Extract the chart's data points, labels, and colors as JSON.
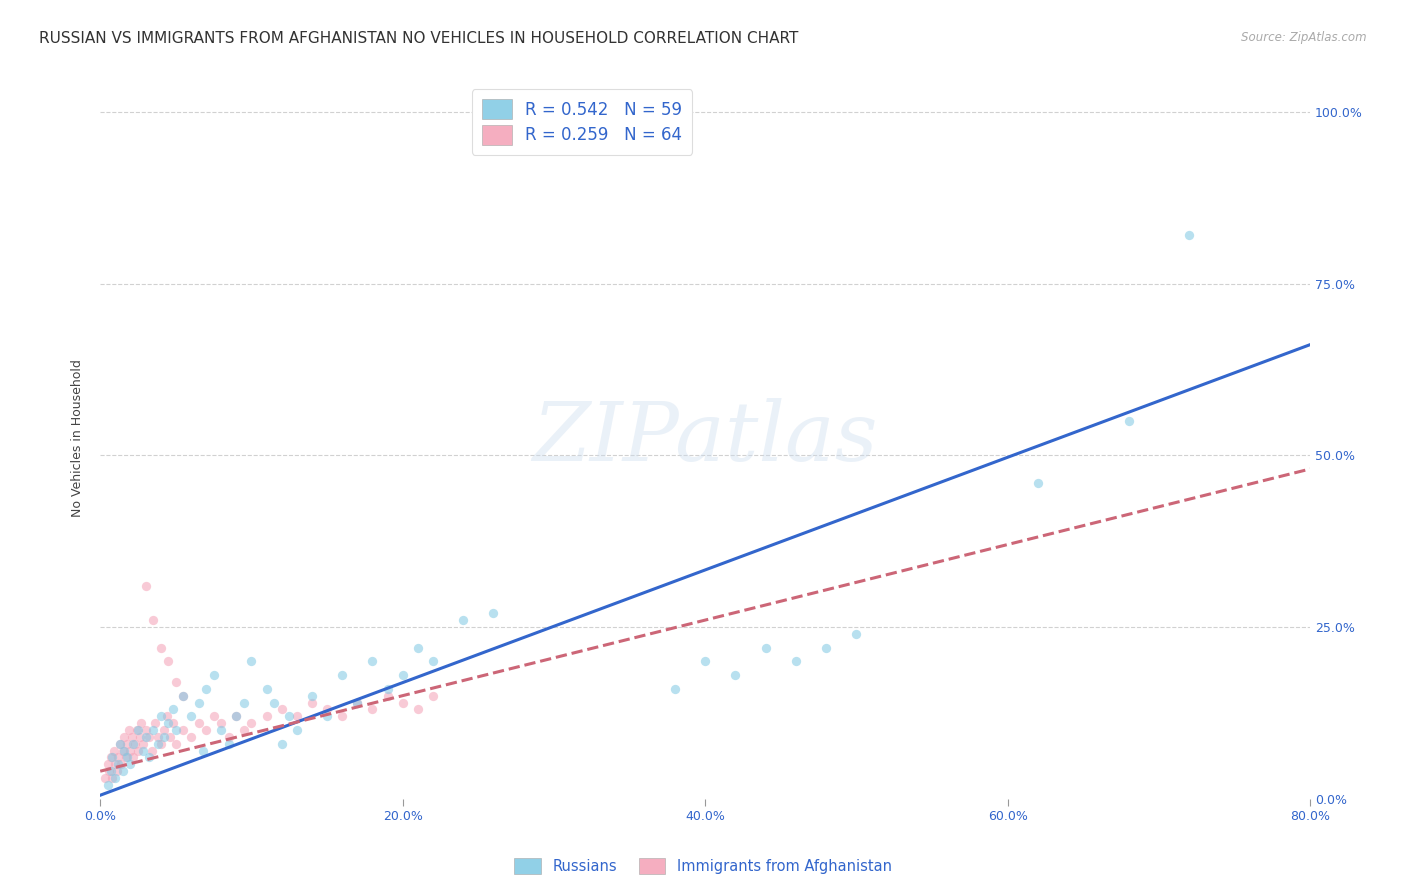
{
  "title": "RUSSIAN VS IMMIGRANTS FROM AFGHANISTAN NO VEHICLES IN HOUSEHOLD CORRELATION CHART",
  "source": "Source: ZipAtlas.com",
  "xlabel_bottom": [
    "0.0%",
    "20.0%",
    "40.0%",
    "60.0%",
    "80.0%"
  ],
  "ylabel_right": [
    "0.0%",
    "25.0%",
    "50.0%",
    "75.0%",
    "100.0%"
  ],
  "ylabel_label": "No Vehicles in Household",
  "xlim": [
    0.0,
    0.8
  ],
  "ylim": [
    0.0,
    1.05
  ],
  "grid_color": "#cccccc",
  "background_color": "#ffffff",
  "blue_color": "#7ec8e3",
  "pink_color": "#f4a0b5",
  "blue_line_color": "#3366cc",
  "pink_line_color": "#cc6677",
  "legend_R_blue": "R = 0.542",
  "legend_N_blue": "N = 59",
  "legend_R_pink": "R = 0.259",
  "legend_N_pink": "N = 64",
  "legend_label_blue": "Russians",
  "legend_label_pink": "Immigrants from Afghanistan",
  "watermark": "ZIPatlas",
  "blue_scatter_x": [
    0.005,
    0.007,
    0.008,
    0.01,
    0.012,
    0.013,
    0.015,
    0.016,
    0.018,
    0.02,
    0.022,
    0.025,
    0.028,
    0.03,
    0.032,
    0.035,
    0.038,
    0.04,
    0.042,
    0.045,
    0.048,
    0.05,
    0.055,
    0.06,
    0.065,
    0.068,
    0.07,
    0.075,
    0.08,
    0.085,
    0.09,
    0.095,
    0.1,
    0.11,
    0.115,
    0.12,
    0.125,
    0.13,
    0.14,
    0.15,
    0.16,
    0.17,
    0.18,
    0.19,
    0.2,
    0.21,
    0.22,
    0.24,
    0.26,
    0.38,
    0.4,
    0.42,
    0.44,
    0.46,
    0.48,
    0.5,
    0.62,
    0.68,
    0.72
  ],
  "blue_scatter_y": [
    0.02,
    0.04,
    0.06,
    0.03,
    0.05,
    0.08,
    0.04,
    0.07,
    0.06,
    0.05,
    0.08,
    0.1,
    0.07,
    0.09,
    0.06,
    0.1,
    0.08,
    0.12,
    0.09,
    0.11,
    0.13,
    0.1,
    0.15,
    0.12,
    0.14,
    0.07,
    0.16,
    0.18,
    0.1,
    0.08,
    0.12,
    0.14,
    0.2,
    0.16,
    0.14,
    0.08,
    0.12,
    0.1,
    0.15,
    0.12,
    0.18,
    0.14,
    0.2,
    0.16,
    0.18,
    0.22,
    0.2,
    0.26,
    0.27,
    0.16,
    0.2,
    0.18,
    0.22,
    0.2,
    0.22,
    0.24,
    0.46,
    0.55,
    0.82
  ],
  "pink_scatter_x": [
    0.003,
    0.005,
    0.006,
    0.007,
    0.008,
    0.009,
    0.01,
    0.011,
    0.012,
    0.013,
    0.014,
    0.015,
    0.016,
    0.017,
    0.018,
    0.019,
    0.02,
    0.021,
    0.022,
    0.023,
    0.024,
    0.025,
    0.026,
    0.027,
    0.028,
    0.03,
    0.032,
    0.034,
    0.036,
    0.038,
    0.04,
    0.042,
    0.044,
    0.046,
    0.048,
    0.05,
    0.055,
    0.06,
    0.065,
    0.07,
    0.075,
    0.08,
    0.085,
    0.09,
    0.095,
    0.1,
    0.11,
    0.12,
    0.13,
    0.14,
    0.15,
    0.16,
    0.17,
    0.18,
    0.19,
    0.2,
    0.21,
    0.22,
    0.03,
    0.035,
    0.04,
    0.045,
    0.05,
    0.055
  ],
  "pink_scatter_y": [
    0.03,
    0.05,
    0.04,
    0.06,
    0.03,
    0.07,
    0.05,
    0.04,
    0.06,
    0.08,
    0.05,
    0.07,
    0.09,
    0.06,
    0.08,
    0.1,
    0.07,
    0.09,
    0.06,
    0.08,
    0.1,
    0.07,
    0.09,
    0.11,
    0.08,
    0.1,
    0.09,
    0.07,
    0.11,
    0.09,
    0.08,
    0.1,
    0.12,
    0.09,
    0.11,
    0.08,
    0.1,
    0.09,
    0.11,
    0.1,
    0.12,
    0.11,
    0.09,
    0.12,
    0.1,
    0.11,
    0.12,
    0.13,
    0.12,
    0.14,
    0.13,
    0.12,
    0.14,
    0.13,
    0.15,
    0.14,
    0.13,
    0.15,
    0.31,
    0.26,
    0.22,
    0.2,
    0.17,
    0.15
  ],
  "title_fontsize": 11,
  "axis_label_fontsize": 9,
  "tick_fontsize": 9,
  "scatter_size": 45,
  "scatter_alpha": 0.55,
  "blue_line_slope": 0.82,
  "blue_line_intercept": 0.005,
  "pink_line_slope": 0.55,
  "pink_line_intercept": 0.04,
  "line_width": 2.2
}
